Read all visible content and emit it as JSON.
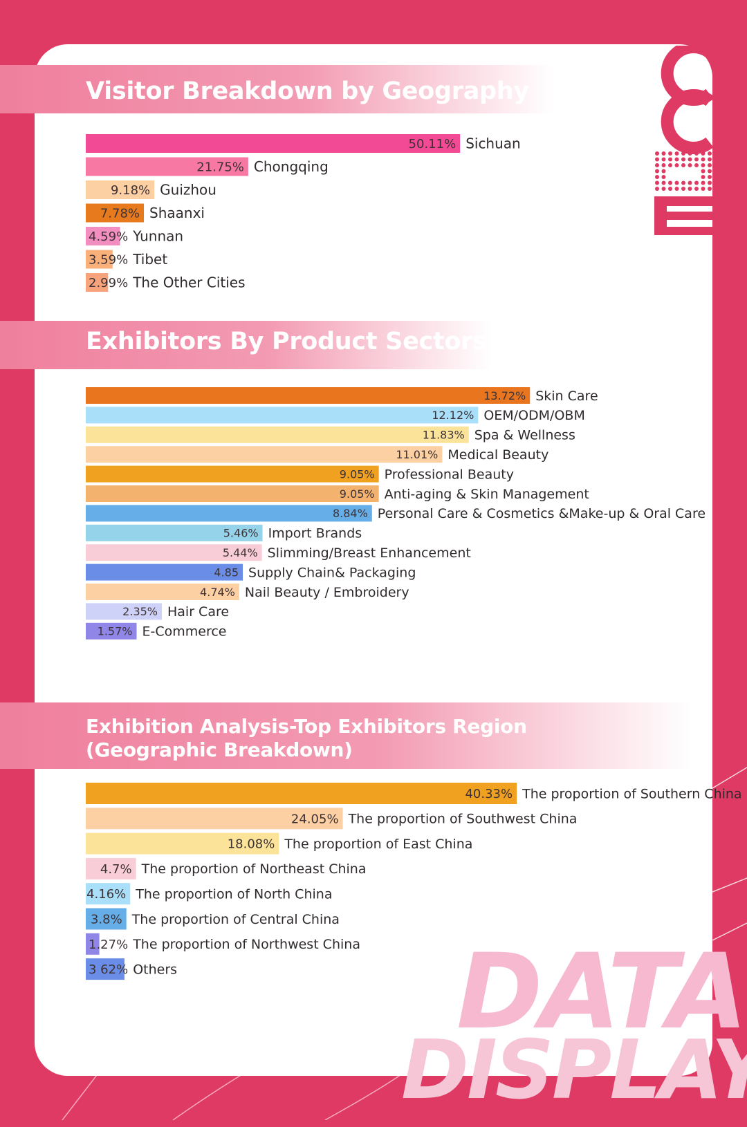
{
  "colors": {
    "page_background": "#df3a63",
    "card_background": "#ffffff",
    "section_banner": "#f08aa6",
    "watermark": "#f7b9cf"
  },
  "logo": {
    "text": "CCE",
    "color": "#df3a63"
  },
  "watermark": {
    "line1": "DATA",
    "line2": "DISPLAY"
  },
  "sections": [
    {
      "title": "Visitor Breakdown by Geography"
    },
    {
      "title": "Exhibitors By Product Sectors"
    },
    {
      "title_line1": "Exhibition Analysis-Top Exhibitors Region",
      "title_line2": "(Geographic Breakdown)"
    }
  ],
  "chart_data": [
    {
      "type": "bar",
      "orientation": "horizontal",
      "title": "Visitor Breakdown by Geography",
      "categories": [
        "Sichuan",
        "Chongqing",
        "Guizhou",
        "Shaanxi",
        "Yunnan",
        "Tibet",
        "The Other Cities"
      ],
      "values": [
        50.11,
        21.75,
        9.18,
        7.78,
        4.59,
        3.59,
        2.99
      ],
      "value_labels": [
        "50.11%",
        "21.75%",
        "9.18%",
        "7.78%",
        "4.59%",
        "3.59%",
        "2.99%"
      ],
      "colors": [
        "#f24a94",
        "#f778a3",
        "#fdd0a4",
        "#e87a1e",
        "#f28ec0",
        "#f9b07a",
        "#f7a47c"
      ],
      "grid": false
    },
    {
      "type": "bar",
      "orientation": "horizontal",
      "title": "Exhibitors By Product Sectors",
      "categories": [
        "Skin Care",
        "OEM/ODM/OBM",
        "Spa & Wellness",
        "Medical Beauty",
        "Professional Beauty",
        "Anti-aging & Skin Management",
        "Personal Care & Cosmetics &Make-up & Oral Care",
        "Import Brands",
        "Slimming/Breast Enhancement",
        "Supply Chain& Packaging",
        "Nail Beauty / Embroidery",
        "Hair Care",
        "E-Commerce"
      ],
      "values": [
        13.72,
        12.12,
        11.83,
        11.01,
        9.05,
        9.05,
        8.84,
        5.46,
        5.44,
        4.85,
        4.74,
        2.35,
        1.57
      ],
      "value_labels": [
        "13.72%",
        "12.12%",
        "11.83%",
        "11.01%",
        "9.05%",
        "9.05%",
        "8.84%",
        "5.46%",
        "5.44%",
        "4.85",
        "4.74%",
        "2.35%",
        "1.57%"
      ],
      "colors": [
        "#e9761f",
        "#a9dff8",
        "#fbe49a",
        "#fdd0a4",
        "#f0a11f",
        "#f3b36e",
        "#66aee8",
        "#95d3ea",
        "#f8cdd8",
        "#6a8ee8",
        "#fdd0a4",
        "#cfd2f8",
        "#8f86e8"
      ],
      "grid": false
    },
    {
      "type": "bar",
      "orientation": "horizontal",
      "title": "Exhibition Analysis-Top Exhibitors Region (Geographic Breakdown)",
      "categories": [
        "The proportion of Southern China",
        "The proportion of Southwest China",
        "The proportion of East China",
        "The proportion of Northeast China",
        "The proportion of North China",
        "The proportion of Central China",
        "The proportion of Northwest China",
        "Others"
      ],
      "values": [
        40.33,
        24.05,
        18.08,
        4.7,
        4.16,
        3.8,
        1.27,
        3.62
      ],
      "value_labels": [
        "40.33%",
        "24.05%",
        "18.08%",
        "4.7%",
        "4.16%",
        "3.8%",
        "1.27%",
        "3 62%"
      ],
      "colors": [
        "#f0a11f",
        "#fdd0a4",
        "#fbe49a",
        "#f8cdd8",
        "#a9dff8",
        "#66aee8",
        "#8f86e8",
        "#6a8ee8"
      ],
      "grid": false
    }
  ]
}
